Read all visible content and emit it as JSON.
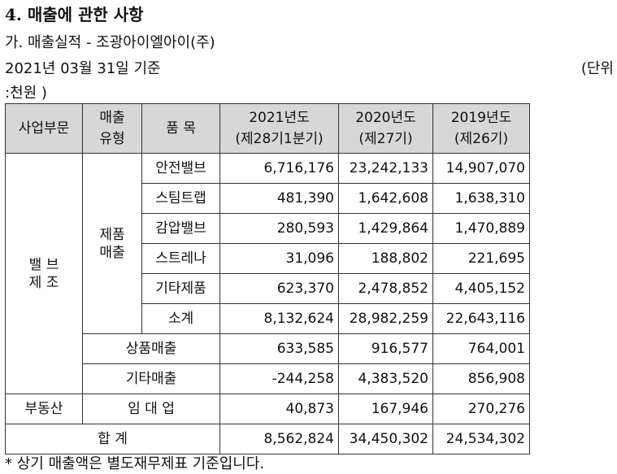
{
  "heading": "4. 매출에 관한 사항",
  "subtitle": "가. 매출실적 - 조광아이엘아이(주)",
  "date_line": "2021년 03월 31일 기준",
  "unit_part1": "(단위",
  "unit_part2": ":천원 )",
  "table": {
    "headers": {
      "division": "사업부문",
      "type": "매출\n유형",
      "item": "품 목",
      "y2021": "2021년도\n(제28기1분기)",
      "y2020": "2020년도\n(제27기)",
      "y2019": "2019년도\n(제26기)"
    },
    "division_valve": "밸 브\n제 조",
    "type_product": "제품\n매출",
    "product_rows": [
      {
        "item": "안전밸브",
        "y2021": "6,716,176",
        "y2020": "23,242,133",
        "y2019": "14,907,070"
      },
      {
        "item": "스팀트랩",
        "y2021": "481,390",
        "y2020": "1,642,608",
        "y2019": "1,638,310"
      },
      {
        "item": "감압밸브",
        "y2021": "280,593",
        "y2020": "1,429,864",
        "y2019": "1,470,889"
      },
      {
        "item": "스트레나",
        "y2021": "31,096",
        "y2020": "188,802",
        "y2019": "221,695"
      },
      {
        "item": "기타제품",
        "y2021": "623,370",
        "y2020": "2,478,852",
        "y2019": "4,405,152"
      },
      {
        "item": "소계",
        "y2021": "8,132,624",
        "y2020": "28,982,259",
        "y2019": "22,643,116"
      }
    ],
    "merch_row": {
      "label": "상품매출",
      "y2021": "633,585",
      "y2020": "916,577",
      "y2019": "764,001"
    },
    "other_row": {
      "label": "기타매출",
      "y2021": "-244,258",
      "y2020": "4,383,520",
      "y2019": "856,908"
    },
    "realestate_row": {
      "division": "부동산",
      "label": "임 대 업",
      "y2021": "40,873",
      "y2020": "167,946",
      "y2019": "270,276"
    },
    "total_row": {
      "label": "합 계",
      "y2021": "8,562,824",
      "y2020": "34,450,302",
      "y2019": "24,534,302"
    }
  },
  "footnote": "* 상기 매출액은 별도재무제표 기준입니다."
}
